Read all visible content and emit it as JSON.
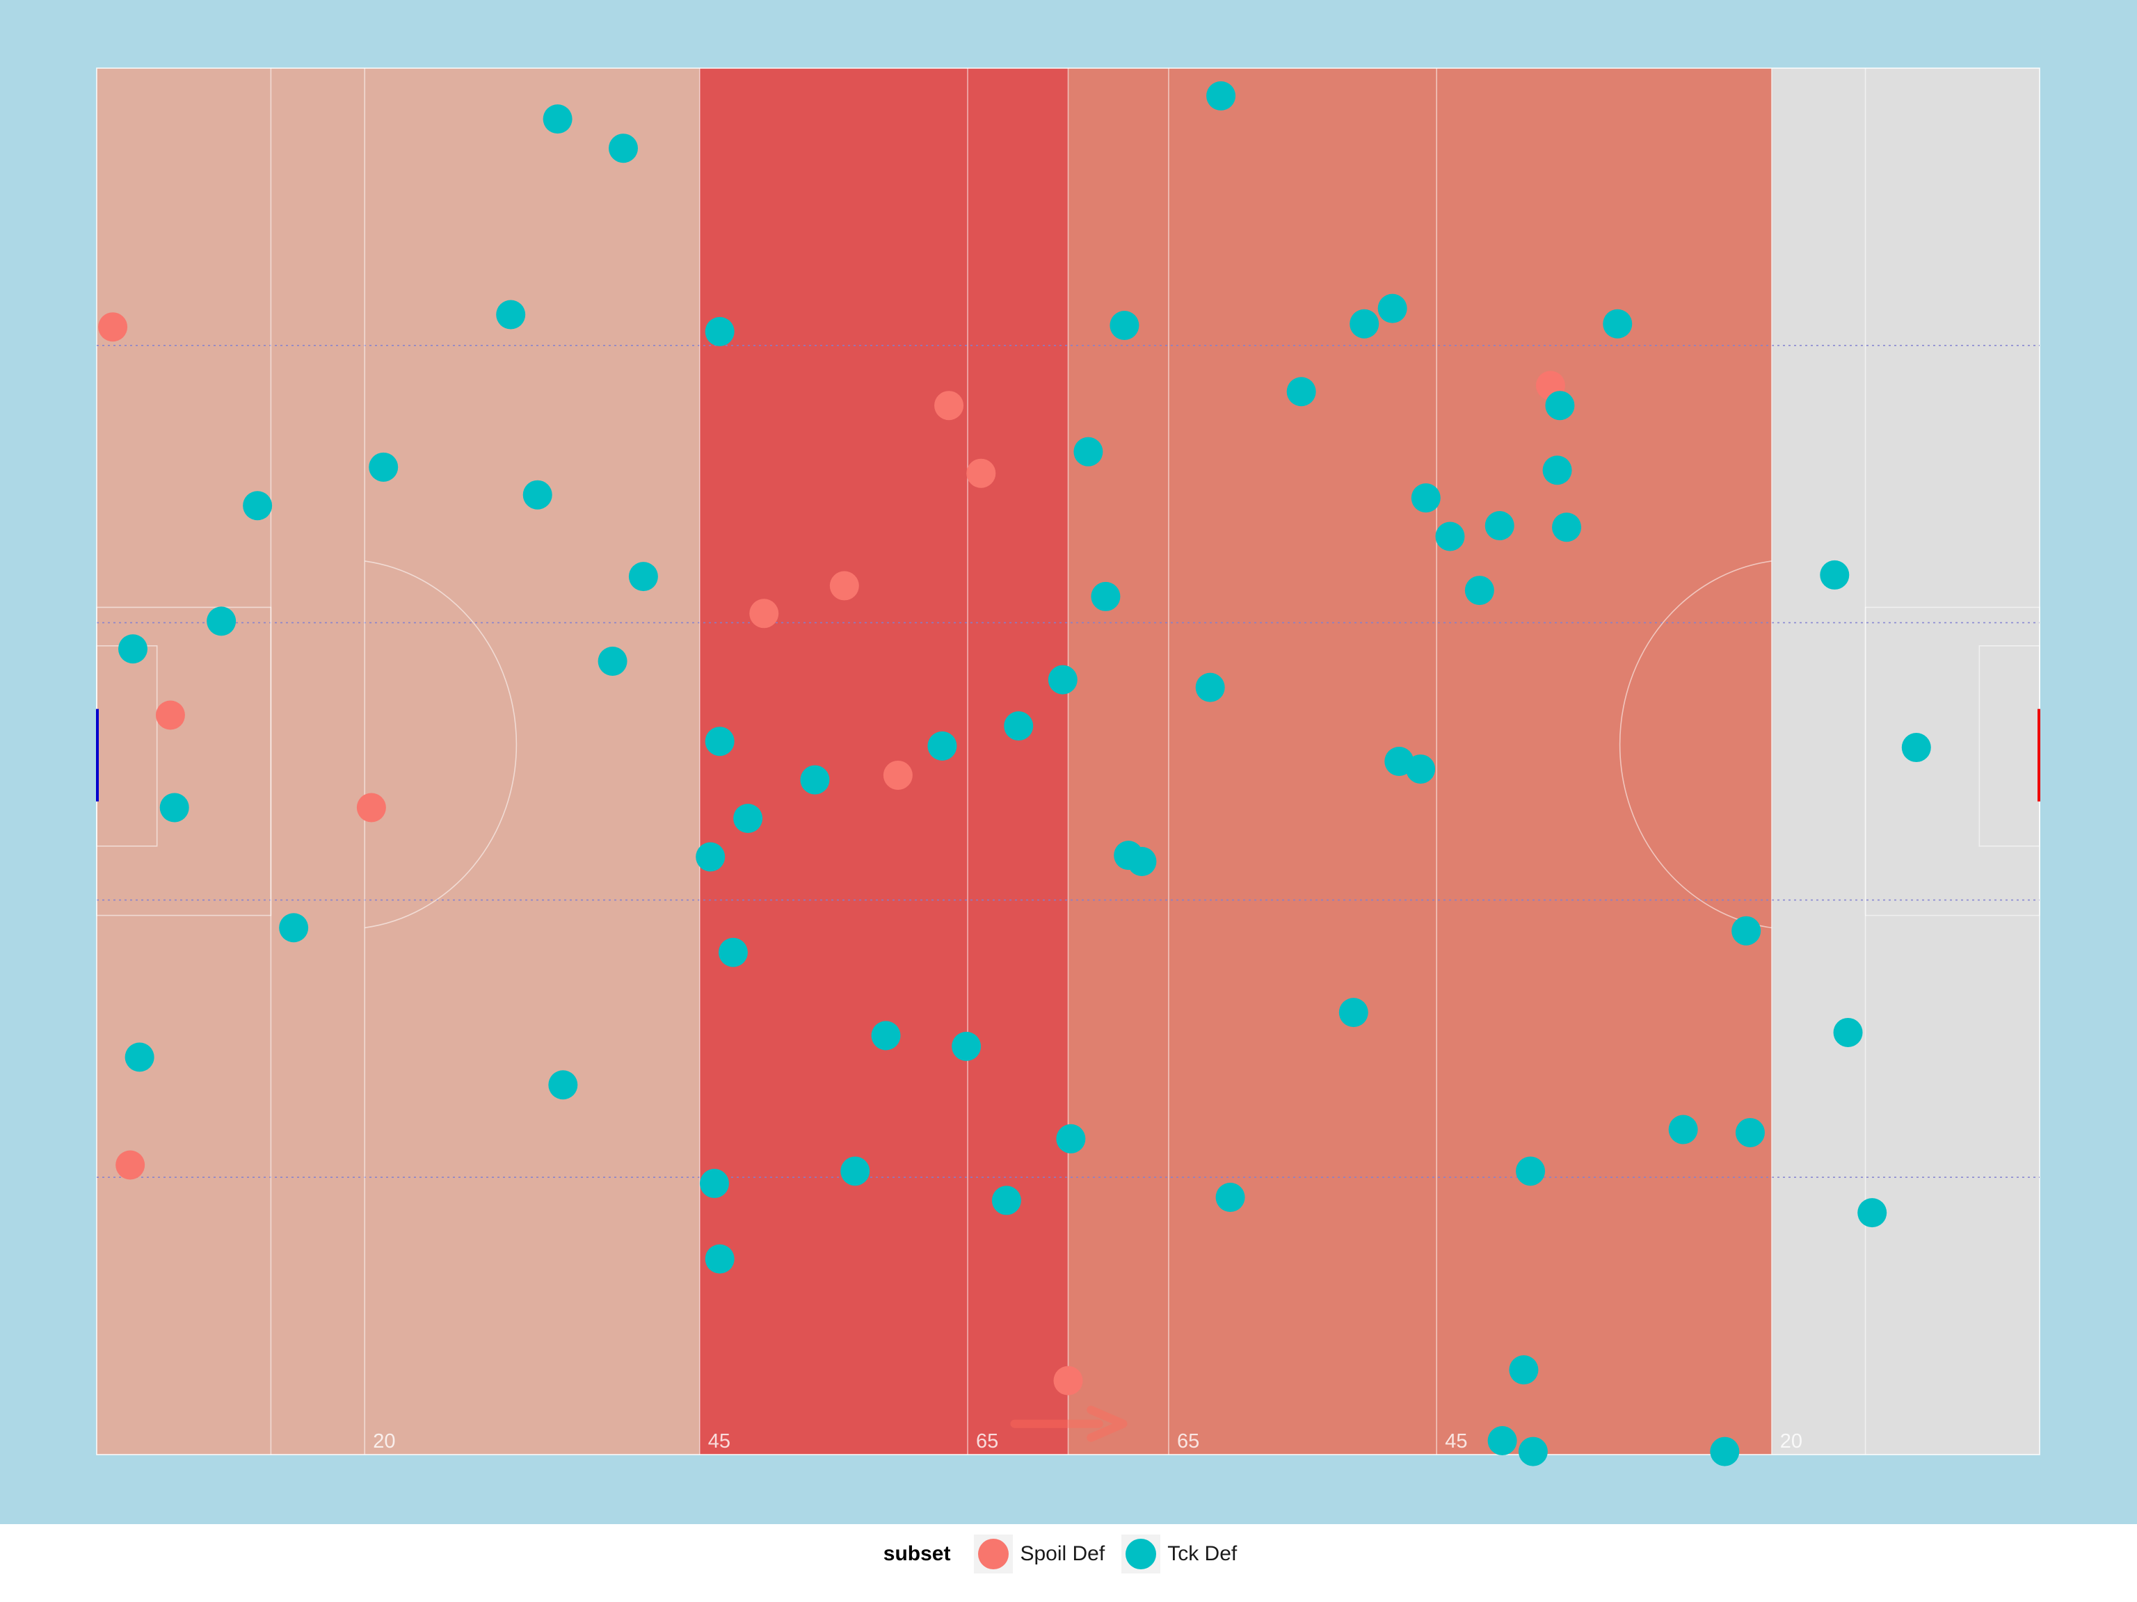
{
  "chart_data": {
    "type": "scatter",
    "title": "",
    "xlabel": "",
    "ylabel": "",
    "xlim": [
      0,
      145
    ],
    "ylim": [
      0,
      90
    ],
    "grid": false,
    "legend_position": "bottom",
    "colors": {
      "background": "#add8e6",
      "pitch_unshaded": "#dedede",
      "zone_def": "#dfaf9f",
      "zone_mid": "#df5353",
      "zone_att": "#df806f",
      "lines": "#ffffff",
      "dotted": "#8080d0",
      "arrow": "#ff6a5a",
      "goal_left": "#0000cc",
      "goal_right": "#ee0000"
    },
    "zones": [
      {
        "name": "def",
        "x0": 0,
        "x1": 45
      },
      {
        "name": "mid",
        "x0": 45,
        "x1": 72.5
      },
      {
        "name": "att",
        "x0": 72.5,
        "x1": 125
      }
    ],
    "distance_markers": [
      {
        "x": 20,
        "label": "20"
      },
      {
        "x": 45,
        "label": "45"
      },
      {
        "x": 65,
        "label": "65"
      },
      {
        "x": 80,
        "label": "65"
      },
      {
        "x": 100,
        "label": "45"
      },
      {
        "x": 125,
        "label": "20"
      }
    ],
    "legend_title": "subset",
    "series": [
      {
        "name": "Spoil Def",
        "color": "#f8766d",
        "points": [
          {
            "x": 1.2,
            "y": 73.2
          },
          {
            "x": 5.5,
            "y": 48.0
          },
          {
            "x": 2.5,
            "y": 18.8
          },
          {
            "x": 20.5,
            "y": 42.0
          },
          {
            "x": 63.6,
            "y": 68.1
          },
          {
            "x": 66.0,
            "y": 63.7
          },
          {
            "x": 55.8,
            "y": 56.4
          },
          {
            "x": 49.8,
            "y": 54.6
          },
          {
            "x": 59.8,
            "y": 44.1
          },
          {
            "x": 72.5,
            "y": 4.8
          },
          {
            "x": 108.5,
            "y": 69.4
          }
        ]
      },
      {
        "name": "Tck Def",
        "color": "#00bfc4",
        "points": [
          {
            "x": 34.4,
            "y": 86.7
          },
          {
            "x": 39.3,
            "y": 84.8
          },
          {
            "x": 30.9,
            "y": 74.0
          },
          {
            "x": 21.4,
            "y": 64.1
          },
          {
            "x": 32.9,
            "y": 62.3
          },
          {
            "x": 12.0,
            "y": 61.6
          },
          {
            "x": 40.8,
            "y": 57.0
          },
          {
            "x": 9.3,
            "y": 54.1
          },
          {
            "x": 2.7,
            "y": 52.3
          },
          {
            "x": 38.5,
            "y": 51.5
          },
          {
            "x": 5.8,
            "y": 42.0
          },
          {
            "x": 14.7,
            "y": 34.2
          },
          {
            "x": 3.2,
            "y": 25.8
          },
          {
            "x": 34.8,
            "y": 24.0
          },
          {
            "x": 46.5,
            "y": 72.9
          },
          {
            "x": 46.5,
            "y": 46.3
          },
          {
            "x": 48.6,
            "y": 41.3
          },
          {
            "x": 45.8,
            "y": 38.8
          },
          {
            "x": 47.5,
            "y": 32.6
          },
          {
            "x": 53.6,
            "y": 43.8
          },
          {
            "x": 63.1,
            "y": 46.0
          },
          {
            "x": 68.8,
            "y": 47.3
          },
          {
            "x": 58.9,
            "y": 27.2
          },
          {
            "x": 64.9,
            "y": 26.5
          },
          {
            "x": 56.6,
            "y": 18.4
          },
          {
            "x": 46.1,
            "y": 17.6
          },
          {
            "x": 46.5,
            "y": 12.7
          },
          {
            "x": 67.9,
            "y": 16.5
          },
          {
            "x": 72.1,
            "y": 50.3
          },
          {
            "x": 72.7,
            "y": 20.5
          },
          {
            "x": 83.9,
            "y": 88.2
          },
          {
            "x": 76.7,
            "y": 73.3
          },
          {
            "x": 74.0,
            "y": 65.1
          },
          {
            "x": 75.3,
            "y": 55.7
          },
          {
            "x": 83.1,
            "y": 49.8
          },
          {
            "x": 77.0,
            "y": 38.9
          },
          {
            "x": 78.0,
            "y": 38.5
          },
          {
            "x": 84.6,
            "y": 16.7
          },
          {
            "x": 89.9,
            "y": 69.0
          },
          {
            "x": 94.6,
            "y": 73.4
          },
          {
            "x": 96.7,
            "y": 74.4
          },
          {
            "x": 113.5,
            "y": 73.4
          },
          {
            "x": 99.2,
            "y": 62.1
          },
          {
            "x": 101.0,
            "y": 59.6
          },
          {
            "x": 104.7,
            "y": 60.3
          },
          {
            "x": 103.2,
            "y": 56.1
          },
          {
            "x": 109.2,
            "y": 68.1
          },
          {
            "x": 109.0,
            "y": 63.9
          },
          {
            "x": 109.7,
            "y": 60.2
          },
          {
            "x": 97.2,
            "y": 45.0
          },
          {
            "x": 98.8,
            "y": 44.5
          },
          {
            "x": 93.8,
            "y": 28.7
          },
          {
            "x": 107.0,
            "y": 18.4
          },
          {
            "x": 106.5,
            "y": 5.5
          },
          {
            "x": 104.9,
            "y": 0.9
          },
          {
            "x": 107.2,
            "y": 0.2
          },
          {
            "x": 123.1,
            "y": 34.0
          },
          {
            "x": 118.4,
            "y": 21.1
          },
          {
            "x": 123.4,
            "y": 20.9
          },
          {
            "x": 121.5,
            "y": 0.2
          },
          {
            "x": 129.7,
            "y": 57.1
          },
          {
            "x": 135.8,
            "y": 45.9
          },
          {
            "x": 130.7,
            "y": 27.4
          },
          {
            "x": 132.5,
            "y": 15.7
          }
        ]
      }
    ]
  }
}
